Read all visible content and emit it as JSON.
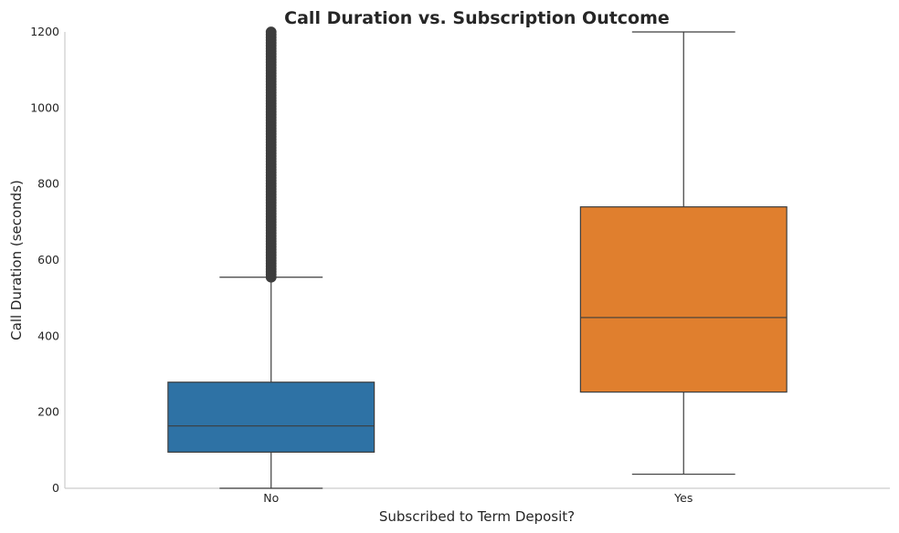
{
  "chart_data": {
    "type": "box",
    "title": "Call Duration vs. Subscription Outcome",
    "xlabel": "Subscribed to Term Deposit?",
    "ylabel": "Call Duration (seconds)",
    "ylim": [
      0,
      1200
    ],
    "yticks": [
      0,
      200,
      400,
      600,
      800,
      1000,
      1200
    ],
    "grid": false,
    "categories": [
      "No",
      "Yes"
    ],
    "series": [
      {
        "category": "No",
        "color": "#2e72a5",
        "whisker_low": 0,
        "q1": 95,
        "median": 164,
        "q3": 279,
        "whisker_high": 555,
        "outliers_range": [
          555,
          1200
        ]
      },
      {
        "category": "Yes",
        "color": "#e07f2e",
        "whisker_low": 37,
        "q1": 253,
        "median": 449,
        "q3": 740,
        "whisker_high": 1200
      }
    ]
  }
}
